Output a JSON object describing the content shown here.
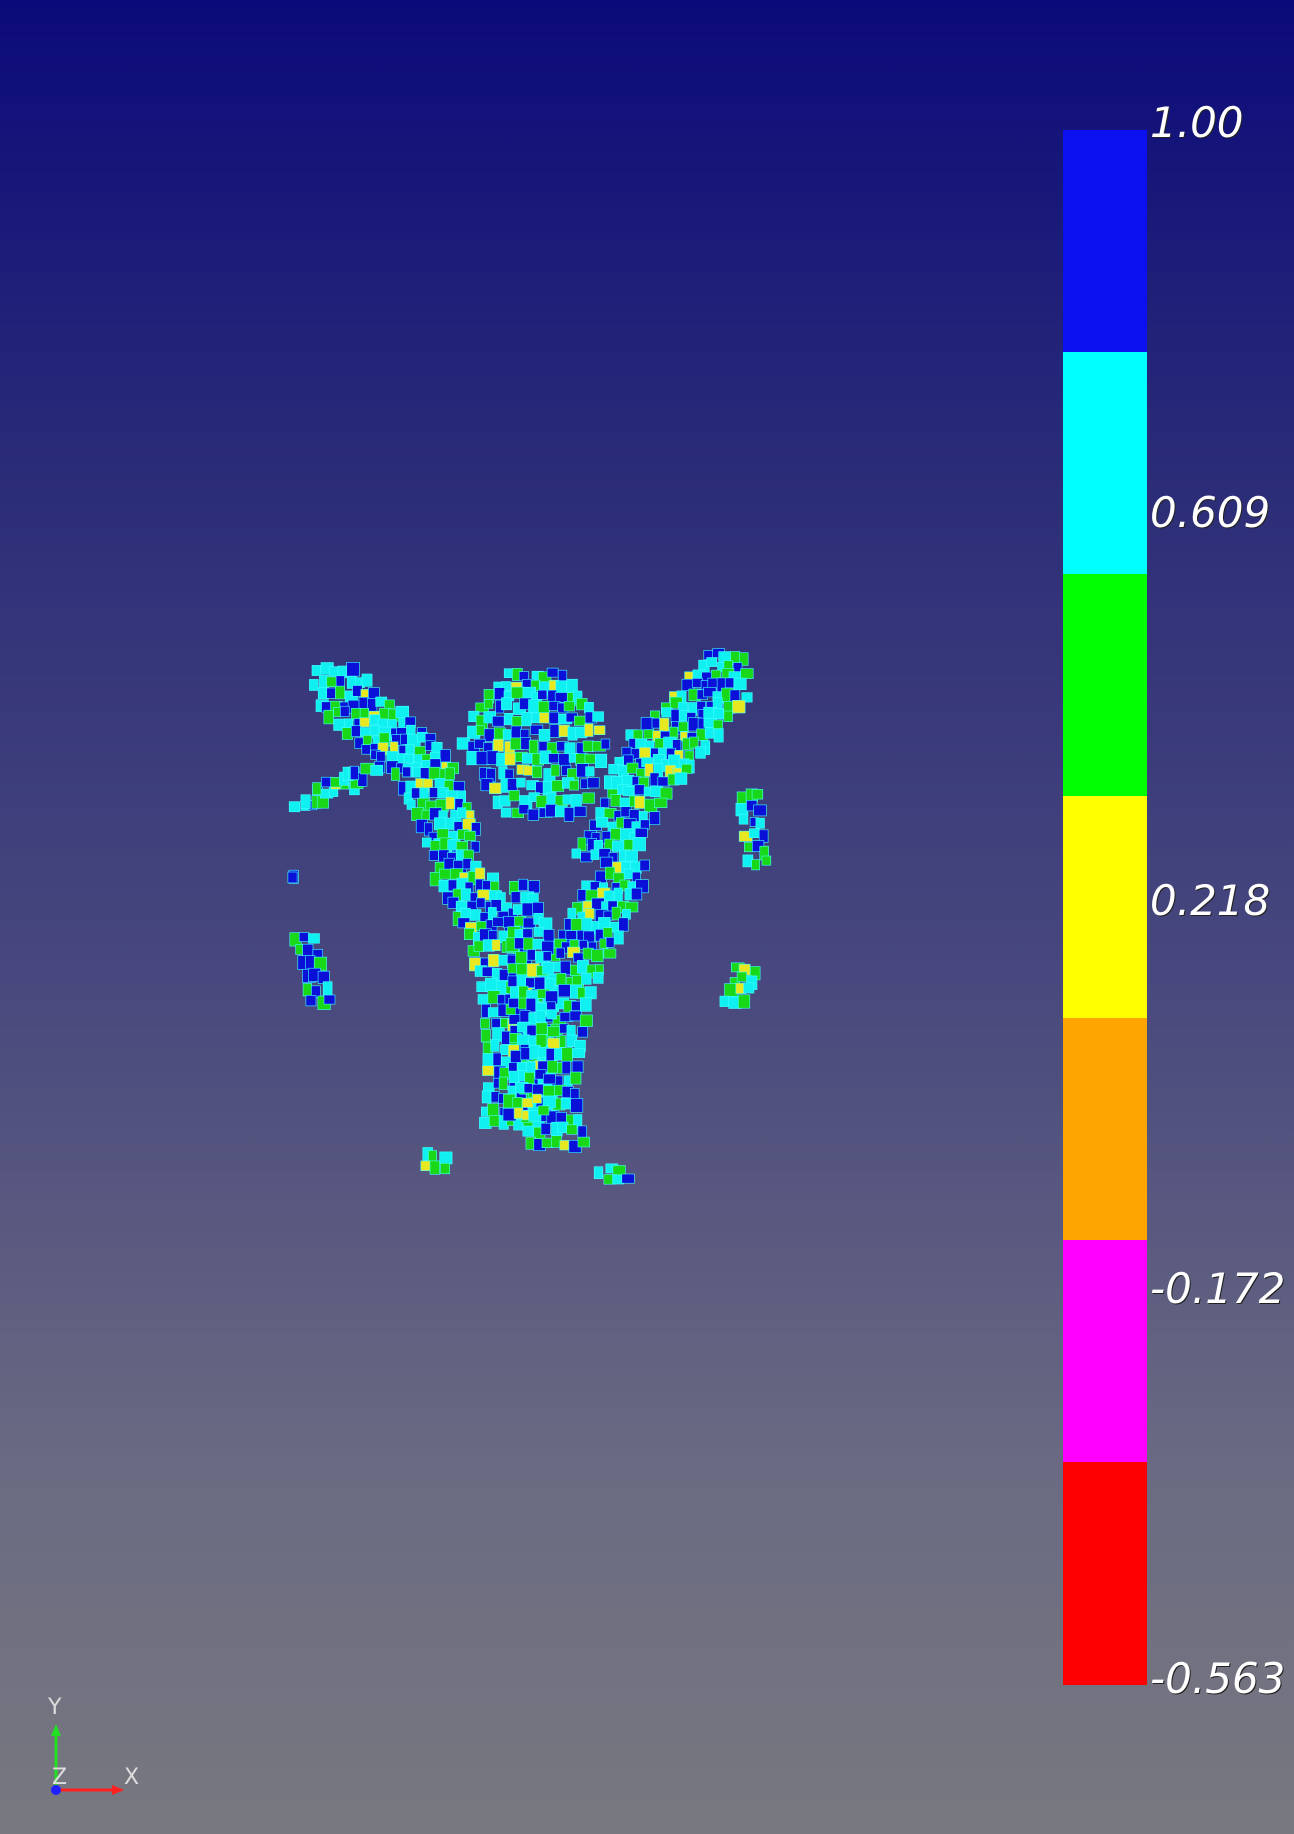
{
  "colorbar": {
    "labels": [
      "1.00",
      "0.609",
      "0.218",
      "-0.172",
      "-0.563"
    ],
    "colors": [
      "#0a10f0",
      "#00ffff",
      "#00ff00",
      "#ffff00",
      "#ffa500",
      "#ff00ff",
      "#ff0000"
    ]
  },
  "axes": {
    "y_label": "Y",
    "z_label": "Z",
    "x_label": "X",
    "colors": {
      "x": "#ff2020",
      "y": "#20e020",
      "z": "#2020ff"
    }
  },
  "mesh": {
    "palette": [
      "#0a10d8",
      "#10f0f0",
      "#18d818",
      "#e8e820"
    ]
  }
}
